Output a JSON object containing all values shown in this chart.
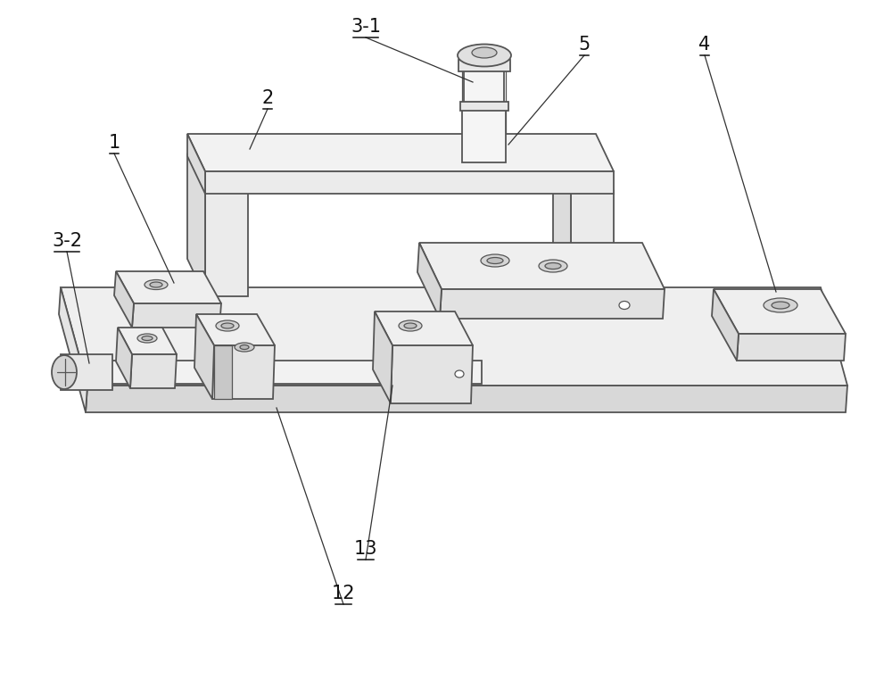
{
  "fig_width": 10.0,
  "fig_height": 7.72,
  "bg_color": "#ffffff",
  "lc": "#555555",
  "lw": 1.3,
  "tlw": 0.9,
  "label_fontsize": 15
}
